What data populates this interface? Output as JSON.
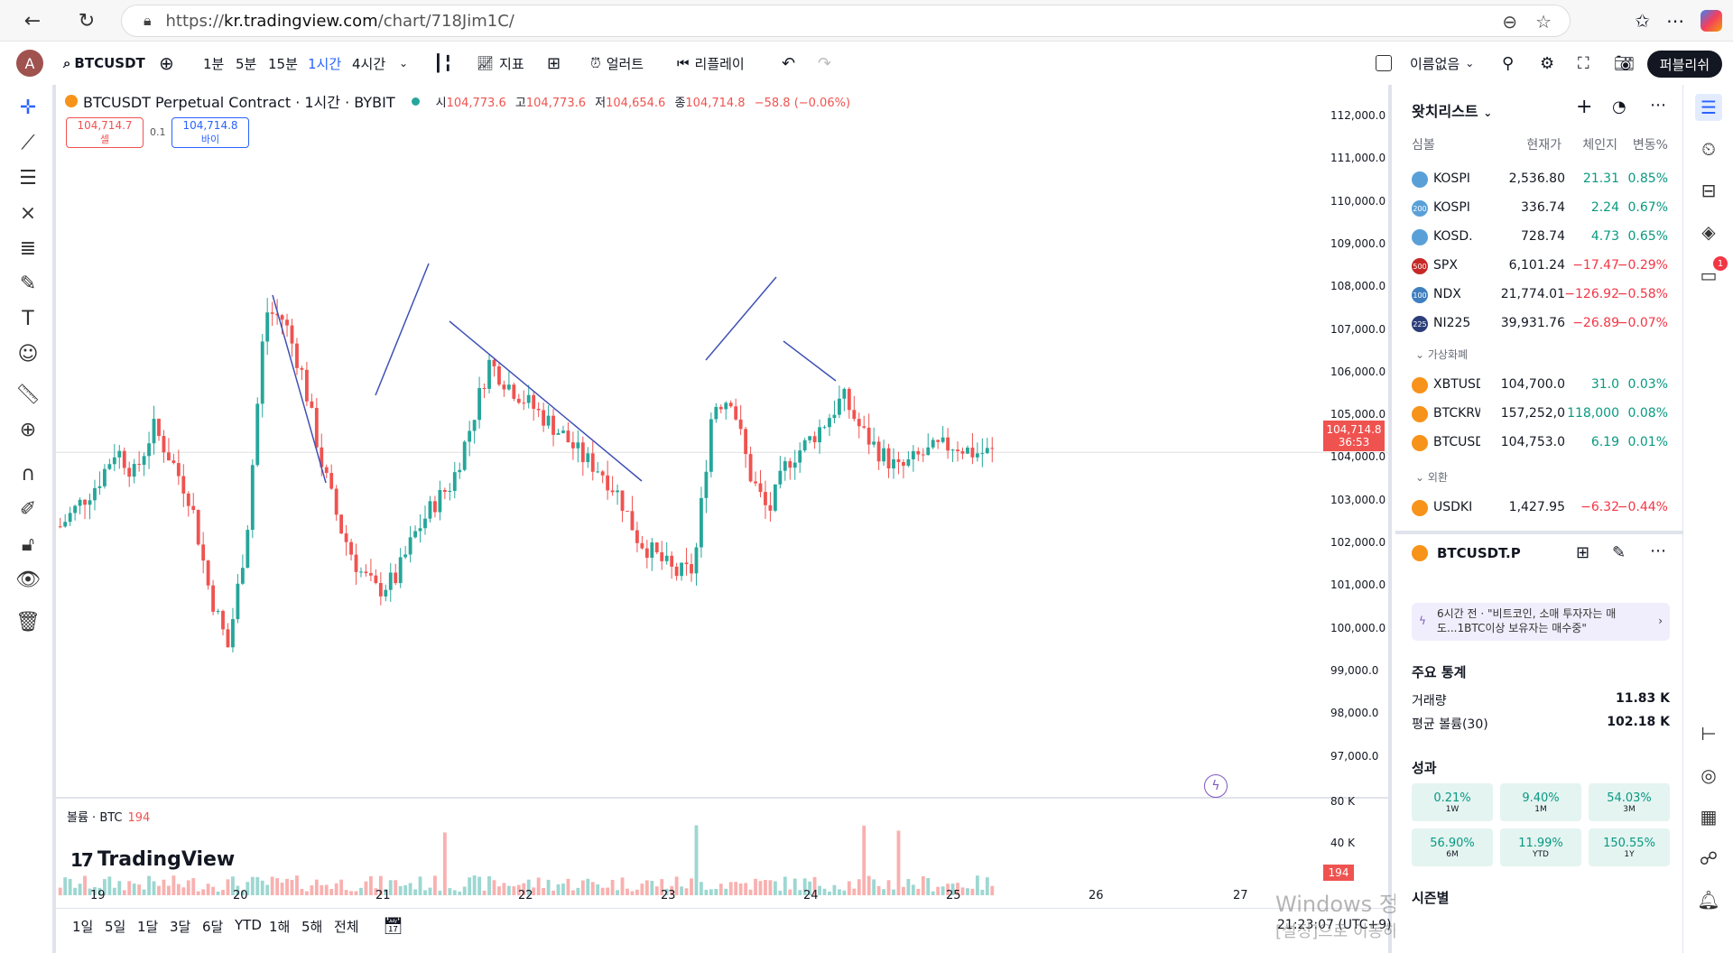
{
  "browser": {
    "url_scheme": "https://",
    "url_host": "kr.tradingview.com",
    "url_path": "/chart/718Jim1C/"
  },
  "toolbar": {
    "avatar_letter": "A",
    "symbol": "BTCUSDT",
    "intervals": [
      "1분",
      "5분",
      "15분",
      "1시간",
      "4시간"
    ],
    "active_interval": "1시간",
    "indicators_label": "지표",
    "alerts_label": "얼러트",
    "replay_label": "리플레이",
    "layout_name": "이름없음",
    "publish_label": "퍼블리쉬"
  },
  "legend": {
    "title": "BTCUSDT Perpetual Contract · 1시간 · BYBIT",
    "open_label": "시",
    "open": "104,773.6",
    "high_label": "고",
    "high": "104,773.6",
    "low_label": "저",
    "low": "104,654.6",
    "close_label": "종",
    "close": "104,714.8",
    "change": "−58.8 (−0.06%)",
    "sell_price": "104,714.7",
    "sell_label": "셀",
    "spread": "0.1",
    "buy_price": "104,714.8",
    "buy_label": "바이"
  },
  "price_axis": {
    "ticks": [
      "112,000.0",
      "111,000.0",
      "110,000.0",
      "109,000.0",
      "108,000.0",
      "107,000.0",
      "106,000.0",
      "105,000.0",
      "104,000.0",
      "103,000.0",
      "102,000.0",
      "101,000.0",
      "100,000.0",
      "99,000.0",
      "98,000.0",
      "97,000.0"
    ],
    "current_price": "104,714.8",
    "countdown": "36:53",
    "volume_ticks": [
      "80 K",
      "40 K"
    ],
    "volume_current": "194"
  },
  "volume": {
    "label": "볼륨 · BTC",
    "value": "194"
  },
  "time_axis": [
    "19",
    "20",
    "21",
    "22",
    "23",
    "24",
    "25",
    "26",
    "27"
  ],
  "brand": "TradingView",
  "ranges": [
    "1일",
    "5일",
    "1달",
    "3달",
    "6달",
    "YTD",
    "1해",
    "5해",
    "전체"
  ],
  "clock": "21:23:07 (UTC+9)",
  "watermark": {
    "line1": "Windows 정품 인증",
    "line2": "[설정]으로 이동하여 Windows를 정품 인증합니다."
  },
  "watchlist": {
    "title": "왓치리스트",
    "columns": [
      "심볼",
      "현재가",
      "체인지",
      "변동%"
    ],
    "rows": [
      {
        "icon": "",
        "color": "#5aa0d8",
        "sym": "KOSPI",
        "last": "2,536.80",
        "chg": "21.31",
        "pct": "0.85%",
        "dir": "pos"
      },
      {
        "icon": "200",
        "color": "#5aa0d8",
        "sym": "KOSPI",
        "last": "336.74",
        "chg": "2.24",
        "pct": "0.67%",
        "dir": "pos"
      },
      {
        "icon": "",
        "color": "#5aa0d8",
        "sym": "KOSD.",
        "last": "728.74",
        "chg": "4.73",
        "pct": "0.65%",
        "dir": "pos"
      },
      {
        "icon": "500",
        "color": "#c62828",
        "sym": "SPX",
        "last": "6,101.24",
        "chg": "−17.47",
        "pct": "−0.29%",
        "dir": "neg"
      },
      {
        "icon": "100",
        "color": "#3f7fc0",
        "sym": "NDX",
        "last": "21,774.01",
        "chg": "−126.92",
        "pct": "−0.58%",
        "dir": "neg"
      },
      {
        "icon": "225",
        "color": "#2c3e7a",
        "sym": "NI225",
        "last": "39,931.76",
        "chg": "−26.89",
        "pct": "−0.07%",
        "dir": "neg"
      }
    ],
    "section_crypto": "가상화폐",
    "crypto": [
      {
        "sym": "XBTUSD",
        "last": "104,700.0",
        "chg": "31.0",
        "pct": "0.03%",
        "dir": "pos"
      },
      {
        "sym": "BTCKRW",
        "last": "157,252,0",
        "chg": "118,000",
        "pct": "0.08%",
        "dir": "pos"
      },
      {
        "sym": "BTCUSD",
        "last": "104,753.0",
        "chg": "6.19",
        "pct": "0.01%",
        "dir": "pos"
      }
    ],
    "section_fx": "외환",
    "fx": [
      {
        "sym": "USDKI",
        "last": "1,427.95",
        "chg": "−6.32",
        "pct": "−0.44%",
        "dir": "neg"
      }
    ]
  },
  "detail": {
    "symbol": "BTCUSDT.P",
    "news": "6시간 전 · \"비트코인, 소매 투자자는 매도...1BTC이상 보유자는 매수중\"",
    "stats_title": "주요 통계",
    "volume_label": "거래량",
    "volume_value": "11.83 K",
    "avg_label": "평균 볼륨(30)",
    "avg_value": "102.18 K",
    "perf_title": "성과",
    "perf": [
      {
        "v": "0.21%",
        "p": "1W"
      },
      {
        "v": "9.40%",
        "p": "1M"
      },
      {
        "v": "54.03%",
        "p": "3M"
      },
      {
        "v": "56.90%",
        "p": "6M"
      },
      {
        "v": "11.99%",
        "p": "YTD"
      },
      {
        "v": "150.55%",
        "p": "1Y"
      }
    ],
    "seasonal_title": "시즌별"
  },
  "colors": {
    "up": "#26a69a",
    "down": "#ef5350",
    "line": "#3f51b5",
    "accent": "#2962ff"
  },
  "chart_data": {
    "type": "candlestick",
    "ylim": [
      96500,
      112500
    ],
    "x": [
      "19",
      "20",
      "21",
      "22",
      "23",
      "24",
      "25",
      "26",
      "27"
    ],
    "close_series_approx": [
      103000,
      103500,
      104000,
      104800,
      104200,
      105300,
      104500,
      103600,
      101500,
      100200,
      102800,
      108000,
      107800,
      106500,
      104500,
      103000,
      102000,
      101500,
      101800,
      102800,
      103500,
      104000,
      105300,
      106800,
      106300,
      105900,
      105500,
      105100,
      104600,
      104300,
      103700,
      102700,
      102300,
      101900,
      102000,
      105800,
      106000,
      104200,
      103300,
      104500,
      104900,
      105400,
      106000,
      105200,
      104700,
      104300,
      104600,
      104800,
      104900,
      104700,
      104714.8
    ]
  }
}
